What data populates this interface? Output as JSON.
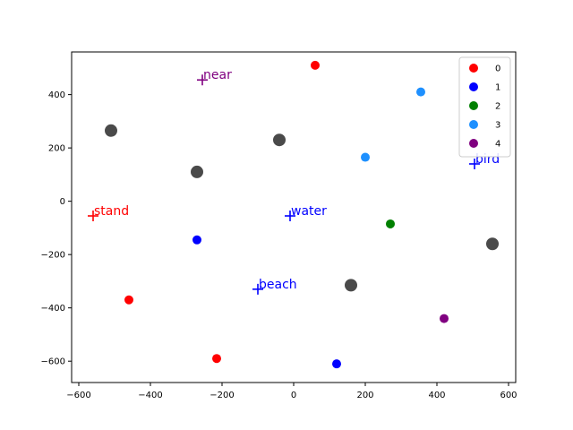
{
  "chart_data": {
    "type": "scatter",
    "xlim": [
      -620,
      620
    ],
    "ylim": [
      -680,
      560
    ],
    "xticks": [
      -600,
      -400,
      -200,
      0,
      200,
      400,
      600
    ],
    "yticks": [
      -600,
      -400,
      -200,
      0,
      200,
      400
    ],
    "grid": false,
    "legend_position": "top-right",
    "colors": {
      "0": "#ff0000",
      "1": "#0000ff",
      "2": "#008000",
      "3": "#1e90ff",
      "4": "#800080",
      "gray": "#404040"
    },
    "series": [
      {
        "name": "0",
        "color": "#ff0000",
        "points": [
          [
            60,
            510
          ],
          [
            -460,
            -370
          ],
          [
            -215,
            -590
          ]
        ]
      },
      {
        "name": "1",
        "color": "#0000ff",
        "points": [
          [
            -270,
            -145
          ],
          [
            120,
            -610
          ]
        ]
      },
      {
        "name": "2",
        "color": "#008000",
        "points": [
          [
            270,
            -85
          ]
        ]
      },
      {
        "name": "3",
        "color": "#1e90ff",
        "points": [
          [
            355,
            410
          ],
          [
            200,
            165
          ]
        ]
      },
      {
        "name": "4",
        "color": "#800080",
        "points": [
          [
            420,
            -440
          ]
        ]
      }
    ],
    "gray_points": [
      [
        -510,
        265
      ],
      [
        -40,
        230
      ],
      [
        -270,
        110
      ],
      [
        555,
        -160
      ],
      [
        160,
        -315
      ]
    ],
    "word_markers": [
      {
        "text": "near",
        "x": -255,
        "y": 455,
        "color": "#800080"
      },
      {
        "text": "bird",
        "x": 505,
        "y": 140,
        "color": "#0000ff"
      },
      {
        "text": "stand",
        "x": -560,
        "y": -55,
        "color": "#ff0000"
      },
      {
        "text": "water",
        "x": -10,
        "y": -55,
        "color": "#0000ff"
      },
      {
        "text": "beach",
        "x": -100,
        "y": -330,
        "color": "#0000ff"
      }
    ]
  }
}
